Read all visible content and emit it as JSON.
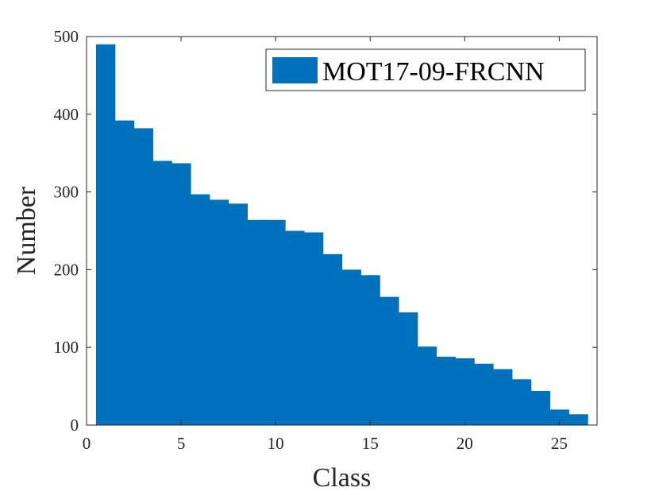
{
  "chart_data": {
    "type": "bar",
    "title": "",
    "xlabel": "Class",
    "ylabel": "Number",
    "xlim": [
      0,
      27
    ],
    "ylim": [
      0,
      500
    ],
    "x_ticks": [
      0,
      5,
      10,
      15,
      20,
      25
    ],
    "y_ticks": [
      0,
      100,
      200,
      300,
      400,
      500
    ],
    "categories": [
      1,
      2,
      3,
      4,
      5,
      6,
      7,
      8,
      9,
      10,
      11,
      12,
      13,
      14,
      15,
      16,
      17,
      18,
      19,
      20,
      21,
      22,
      23,
      24,
      25,
      26
    ],
    "series": [
      {
        "name": "MOT17-09-FRCNN",
        "color": "#0072BD",
        "values": [
          490,
          392,
          382,
          340,
          337,
          297,
          290,
          285,
          264,
          264,
          250,
          248,
          220,
          200,
          193,
          165,
          145,
          101,
          88,
          86,
          79,
          72,
          59,
          44,
          20,
          14
        ]
      }
    ],
    "grid": false,
    "legend_position": "top-right",
    "box": true
  }
}
